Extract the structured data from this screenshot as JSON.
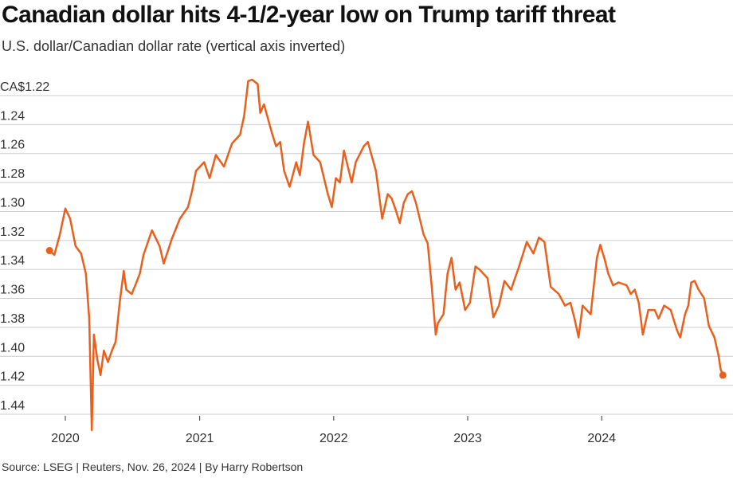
{
  "title": "Canadian dollar hits 4-1/2-year low on Trump tariff threat",
  "subtitle": "U.S. dollar/Canadian dollar rate (vertical axis inverted)",
  "source": "Source: LSEG | Reuters, Nov. 26, 2024 | By Harry Robertson",
  "chart_data": {
    "type": "line",
    "title": "Canadian dollar hits 4-1/2-year low on Trump tariff threat",
    "subtitle": "U.S. dollar/Canadian dollar rate (vertical axis inverted)",
    "xlabel": "",
    "ylabel": "",
    "y_inverted": true,
    "ylim": [
      1.22,
      1.44
    ],
    "y_ticks": [
      1.22,
      1.24,
      1.26,
      1.28,
      1.3,
      1.32,
      1.34,
      1.36,
      1.38,
      1.4,
      1.42,
      1.44
    ],
    "y_tick_labels": [
      "CA$1.22",
      "1.24",
      "1.26",
      "1.28",
      "1.30",
      "1.32",
      "1.34",
      "1.36",
      "1.38",
      "1.40",
      "1.42",
      "1.44"
    ],
    "x_ticks": [
      "2020-01-01",
      "2021-01-01",
      "2022-01-01",
      "2023-01-01",
      "2024-01-01"
    ],
    "x_tick_labels": [
      "2020",
      "2021",
      "2022",
      "2023",
      "2024"
    ],
    "grid": "horizontal",
    "line_color": "#e8601c",
    "grid_color": "#cccccc",
    "end_markers": true,
    "x": [
      "2019-11-19",
      "2019-12-02",
      "2019-12-17",
      "2020-01-01",
      "2020-01-14",
      "2020-01-29",
      "2020-02-13",
      "2020-02-26",
      "2020-03-06",
      "2020-03-13",
      "2020-03-19",
      "2020-03-28",
      "2020-04-06",
      "2020-04-15",
      "2020-04-26",
      "2020-05-07",
      "2020-05-17",
      "2020-05-28",
      "2020-06-08",
      "2020-06-15",
      "2020-06-30",
      "2020-07-22",
      "2020-08-01",
      "2020-08-24",
      "2020-09-14",
      "2020-09-25",
      "2020-10-17",
      "2020-11-08",
      "2020-11-30",
      "2020-12-11",
      "2020-12-22",
      "2021-01-13",
      "2021-01-28",
      "2021-02-14",
      "2021-03-08",
      "2021-03-30",
      "2021-04-21",
      "2021-05-02",
      "2021-05-13",
      "2021-05-24",
      "2021-06-08",
      "2021-06-15",
      "2021-06-25",
      "2021-07-17",
      "2021-07-28",
      "2021-08-08",
      "2021-08-19",
      "2021-09-03",
      "2021-09-21",
      "2021-10-01",
      "2021-10-12",
      "2021-10-23",
      "2021-11-07",
      "2021-11-25",
      "2021-12-16",
      "2021-12-27",
      "2022-01-07",
      "2022-01-18",
      "2022-01-29",
      "2022-02-19",
      "2022-03-02",
      "2022-03-24",
      "2022-04-04",
      "2022-04-26",
      "2022-05-13",
      "2022-05-28",
      "2022-06-08",
      "2022-06-19",
      "2022-06-30",
      "2022-07-11",
      "2022-07-22",
      "2022-08-02",
      "2022-08-13",
      "2022-09-03",
      "2022-09-14",
      "2022-09-25",
      "2022-10-06",
      "2022-10-12",
      "2022-10-27",
      "2022-11-07",
      "2022-11-18",
      "2022-11-29",
      "2022-12-10",
      "2022-12-25",
      "2023-01-07",
      "2023-01-22",
      "2023-02-02",
      "2023-02-24",
      "2023-03-12",
      "2023-03-27",
      "2023-04-11",
      "2023-04-29",
      "2023-05-21",
      "2023-06-11",
      "2023-06-29",
      "2023-07-14",
      "2023-07-29",
      "2023-08-15",
      "2023-09-06",
      "2023-09-23",
      "2023-10-08",
      "2023-10-19",
      "2023-10-30",
      "2023-11-10",
      "2023-12-02",
      "2023-12-19",
      "2023-12-28",
      "2024-01-08",
      "2024-01-19",
      "2024-02-01",
      "2024-02-16",
      "2024-03-09",
      "2024-03-20",
      "2024-03-31",
      "2024-04-11",
      "2024-04-22",
      "2024-05-07",
      "2024-05-24",
      "2024-06-04",
      "2024-06-19",
      "2024-07-07",
      "2024-07-24",
      "2024-08-02",
      "2024-08-15",
      "2024-08-24",
      "2024-09-01",
      "2024-09-10",
      "2024-09-21",
      "2024-10-06",
      "2024-10-19",
      "2024-11-03",
      "2024-11-14",
      "2024-11-20",
      "2024-11-26"
    ],
    "values": [
      1.327,
      1.33,
      1.316,
      1.298,
      1.305,
      1.324,
      1.329,
      1.343,
      1.374,
      1.451,
      1.385,
      1.402,
      1.413,
      1.396,
      1.404,
      1.396,
      1.39,
      1.363,
      1.341,
      1.354,
      1.357,
      1.343,
      1.33,
      1.313,
      1.324,
      1.336,
      1.319,
      1.305,
      1.297,
      1.286,
      1.272,
      1.266,
      1.277,
      1.261,
      1.269,
      1.253,
      1.247,
      1.234,
      1.21,
      1.209,
      1.212,
      1.232,
      1.226,
      1.246,
      1.255,
      1.252,
      1.272,
      1.283,
      1.266,
      1.275,
      1.253,
      1.238,
      1.261,
      1.266,
      1.288,
      1.297,
      1.277,
      1.28,
      1.258,
      1.28,
      1.266,
      1.255,
      1.252,
      1.272,
      1.305,
      1.288,
      1.291,
      1.299,
      1.308,
      1.294,
      1.288,
      1.286,
      1.294,
      1.316,
      1.322,
      1.352,
      1.385,
      1.377,
      1.371,
      1.343,
      1.332,
      1.354,
      1.349,
      1.368,
      1.363,
      1.338,
      1.34,
      1.346,
      1.373,
      1.365,
      1.348,
      1.354,
      1.338,
      1.321,
      1.329,
      1.318,
      1.321,
      1.352,
      1.357,
      1.365,
      1.363,
      1.374,
      1.387,
      1.365,
      1.371,
      1.332,
      1.323,
      1.332,
      1.343,
      1.351,
      1.349,
      1.351,
      1.357,
      1.354,
      1.363,
      1.385,
      1.368,
      1.368,
      1.374,
      1.365,
      1.368,
      1.382,
      1.387,
      1.371,
      1.365,
      1.349,
      1.348,
      1.354,
      1.36,
      1.379,
      1.387,
      1.399,
      1.409,
      1.413
    ]
  }
}
